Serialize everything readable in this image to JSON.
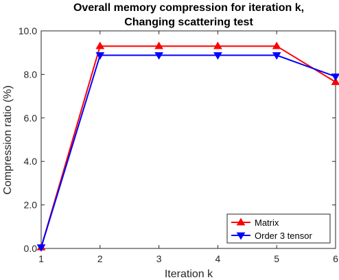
{
  "chart_data": {
    "type": "line",
    "title": [
      "Overall memory compression for iteration k,",
      "Changing scattering test"
    ],
    "xlabel": "Iteration k",
    "ylabel": "Compression ratio (%)",
    "xlim": [
      1,
      6
    ],
    "ylim": [
      0,
      10
    ],
    "x": [
      1,
      2,
      3,
      4,
      5,
      6
    ],
    "x_tick_labels": [
      "1",
      "2",
      "3",
      "4",
      "5",
      "6"
    ],
    "y_ticks": [
      0,
      2,
      4,
      6,
      8,
      10
    ],
    "y_tick_labels": [
      "0.0",
      "2.0",
      "4.0",
      "6.0",
      "8.0",
      "10.0"
    ],
    "grid": false,
    "legend_position": "bottom-right",
    "series": [
      {
        "name": "Matrix",
        "color": "#ff0000",
        "marker": "triangle-up",
        "values": [
          0.05,
          9.3,
          9.3,
          9.3,
          9.3,
          7.65
        ]
      },
      {
        "name": "Order 3 tensor",
        "color": "#0000ff",
        "marker": "triangle-down",
        "values": [
          0.05,
          8.88,
          8.88,
          8.88,
          8.88,
          7.9
        ]
      }
    ]
  }
}
